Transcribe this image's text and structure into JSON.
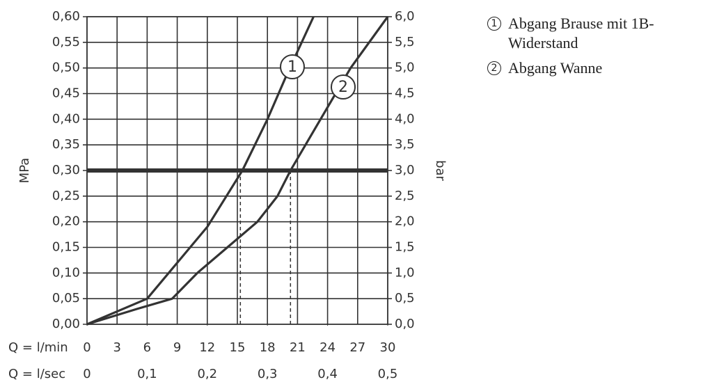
{
  "chart_data": {
    "type": "line",
    "y_label": "MPa",
    "y2_label": "bar",
    "x_row_label": "Q = l/min",
    "x2_row_label": "Q = l/sec",
    "xlim": [
      0,
      30
    ],
    "xticks": [
      0,
      3,
      6,
      9,
      12,
      15,
      18,
      21,
      24,
      27,
      30
    ],
    "x2lim": [
      0,
      0.5
    ],
    "x2ticks": [
      0,
      {
        "value": 0.1,
        "label": "0,1"
      },
      {
        "value": 0.2,
        "label": "0,2"
      },
      {
        "value": 0.3,
        "label": "0,3"
      },
      {
        "value": 0.4,
        "label": "0,4"
      },
      {
        "value": 0.5,
        "label": "0,5"
      }
    ],
    "ylim": [
      0,
      0.6
    ],
    "yticks": [
      {
        "value": 0,
        "label": "0,00"
      },
      {
        "value": 0.05,
        "label": "0,05"
      },
      {
        "value": 0.1,
        "label": "0,10"
      },
      {
        "value": 0.15,
        "label": "0,15"
      },
      {
        "value": 0.2,
        "label": "0,20"
      },
      {
        "value": 0.25,
        "label": "0,25"
      },
      {
        "value": 0.3,
        "label": "0,30"
      },
      {
        "value": 0.35,
        "label": "0,35"
      },
      {
        "value": 0.4,
        "label": "0,40"
      },
      {
        "value": 0.45,
        "label": "0,45"
      },
      {
        "value": 0.5,
        "label": "0,50"
      },
      {
        "value": 0.55,
        "label": "0,55"
      },
      {
        "value": 0.6,
        "label": "0,60"
      }
    ],
    "y2lim": [
      0,
      6
    ],
    "y2ticks": [
      {
        "value": 0,
        "label": "0,0"
      },
      {
        "value": 0.5,
        "label": "0,5"
      },
      {
        "value": 1,
        "label": "1,0"
      },
      {
        "value": 1.5,
        "label": "1,5"
      },
      {
        "value": 2,
        "label": "2,0"
      },
      {
        "value": 2.5,
        "label": "2,5"
      },
      {
        "value": 3,
        "label": "3,0"
      },
      {
        "value": 3.5,
        "label": "3,5"
      },
      {
        "value": 4,
        "label": "4,0"
      },
      {
        "value": 4.5,
        "label": "4,5"
      },
      {
        "value": 5,
        "label": "5,0"
      },
      {
        "value": 5.5,
        "label": "5,5"
      },
      {
        "value": 6,
        "label": "6,0"
      }
    ],
    "grid": true,
    "reference_y": 0.3,
    "reference_x": [
      15.3,
      20.3
    ],
    "series": [
      {
        "name": "1",
        "label": "Abgang Brause mit 1B-Widerstand",
        "color": "#333333",
        "x": [
          0,
          3,
          6,
          9,
          12,
          15.5,
          18,
          20,
          22.6
        ],
        "values": [
          0,
          0.025,
          0.05,
          0.12,
          0.19,
          0.3,
          0.4,
          0.49,
          0.6
        ]
      },
      {
        "name": "2",
        "label": "Abgang Wanne",
        "color": "#333333",
        "x": [
          0,
          5,
          8.5,
          11,
          14,
          17,
          19,
          20.3,
          23.3,
          26.3,
          30
        ],
        "values": [
          0,
          0.03,
          0.05,
          0.1,
          0.15,
          0.2,
          0.25,
          0.3,
          0.4,
          0.5,
          0.6
        ]
      }
    ]
  }
}
